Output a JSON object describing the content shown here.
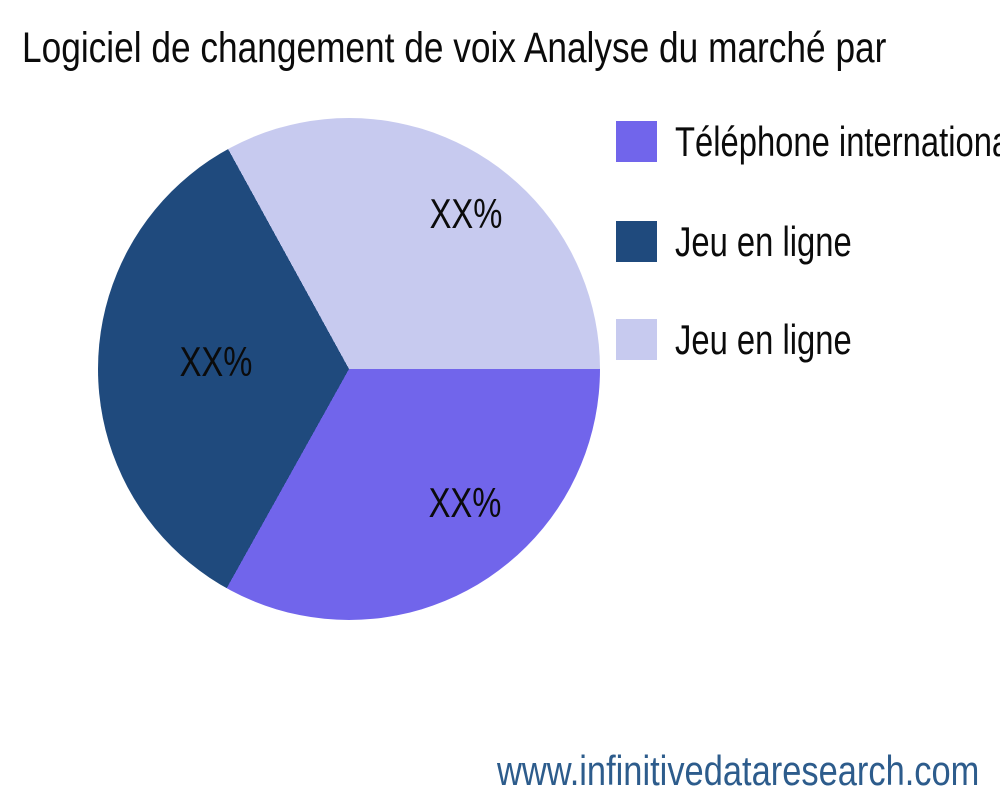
{
  "chart_data": {
    "type": "pie",
    "title": "Logiciel de changement de voix Analyse du marché par",
    "start_angle": "east",
    "direction": "clockwise",
    "legend_position": "right",
    "slices": [
      {
        "label": "Téléphone international",
        "value_label": "XX%",
        "percent": 33.1,
        "color": "#7165EB"
      },
      {
        "label": "Jeu en ligne",
        "value_label": "XX%",
        "percent": 33.9,
        "color": "#1F4A7D"
      },
      {
        "label": "Jeu en ligne",
        "value_label": "XX%",
        "percent": 33.0,
        "color": "#C7CAEF"
      }
    ]
  },
  "footer": {
    "url": "www.infinitivedataresearch.com",
    "color": "#2D5C8C"
  }
}
